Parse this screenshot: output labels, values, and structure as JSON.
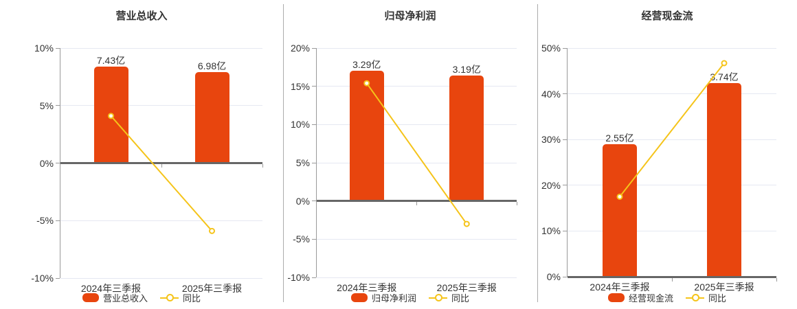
{
  "colors": {
    "bar": "#E8450E",
    "line": "#F5C41A",
    "grid": "#E5E8F2",
    "zero_axis": "#666666",
    "axis": "#999999",
    "divider": "#ABABAB",
    "text": "#333333",
    "marker_fill": "#FFFFFF"
  },
  "chart_data": [
    {
      "type": "bar+line",
      "title": "营业总收入",
      "categories": [
        "2024年三季报",
        "2025年三季报"
      ],
      "bar_series": {
        "name": "营业总收入",
        "value_labels": [
          "7.43亿",
          "6.98亿"
        ],
        "bar_top_on_pct_axis": [
          8.4,
          7.9
        ]
      },
      "line_series": {
        "name": "同比",
        "values_pct": [
          4.1,
          -5.9
        ]
      },
      "y_axis": {
        "min": -10,
        "max": 10,
        "step": 5,
        "tick_labels": [
          "10%",
          "5%",
          "0%",
          "-5%",
          "-10%"
        ]
      },
      "legend": [
        "营业总收入",
        "同比"
      ],
      "grid": true,
      "legend_position": "bottom"
    },
    {
      "type": "bar+line",
      "title": "归母净利润",
      "categories": [
        "2024年三季报",
        "2025年三季报"
      ],
      "bar_series": {
        "name": "归母净利润",
        "value_labels": [
          "3.29亿",
          "3.19亿"
        ],
        "bar_top_on_pct_axis": [
          17.0,
          16.4
        ]
      },
      "line_series": {
        "name": "同比",
        "values_pct": [
          15.4,
          -3.0
        ]
      },
      "y_axis": {
        "min": -10,
        "max": 20,
        "step": 5,
        "tick_labels": [
          "20%",
          "15%",
          "10%",
          "5%",
          "0%",
          "-5%",
          "-10%"
        ]
      },
      "legend": [
        "归母净利润",
        "同比"
      ],
      "grid": true,
      "legend_position": "bottom"
    },
    {
      "type": "bar+line",
      "title": "经营现金流",
      "categories": [
        "2024年三季报",
        "2025年三季报"
      ],
      "bar_series": {
        "name": "经营现金流",
        "value_labels": [
          "2.55亿",
          "3.74亿"
        ],
        "bar_top_on_pct_axis": [
          29.0,
          42.3
        ]
      },
      "line_series": {
        "name": "同比",
        "values_pct": [
          17.5,
          46.7
        ]
      },
      "y_axis": {
        "min": 0,
        "max": 50,
        "step": 10,
        "tick_labels": [
          "50%",
          "40%",
          "30%",
          "20%",
          "10%",
          "0%"
        ]
      },
      "legend": [
        "经营现金流",
        "同比"
      ],
      "grid": true,
      "legend_position": "bottom"
    }
  ]
}
